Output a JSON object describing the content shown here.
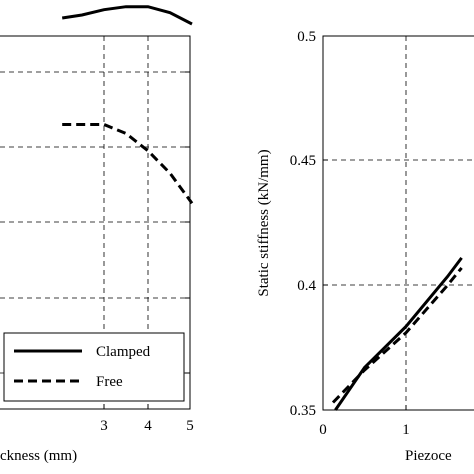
{
  "chart_data": [
    {
      "type": "line",
      "xlabel_visible": "ckness (mm)",
      "ylabel": "",
      "xlim": [
        2.05,
        5
      ],
      "x_ticks": [
        "3",
        "4",
        "5"
      ],
      "grid": true,
      "legend": {
        "position": "bottom-right",
        "entries": [
          "Clamped",
          "Free"
        ]
      },
      "series": [
        {
          "name": "Clamped",
          "style": "solid",
          "points": [
            [
              2.05,
              0.872
            ],
            [
              2.5,
              0.876
            ],
            [
              3.0,
              0.883
            ],
            [
              3.5,
              0.887
            ],
            [
              4.0,
              0.887
            ],
            [
              4.5,
              0.879
            ],
            [
              5.0,
              0.864
            ]
          ]
        },
        {
          "name": "Free",
          "style": "dashed",
          "points": [
            [
              2.05,
              0.73
            ],
            [
              3.0,
              0.73
            ],
            [
              3.5,
              0.718
            ],
            [
              4.0,
              0.695
            ],
            [
              4.5,
              0.665
            ],
            [
              5.0,
              0.625
            ]
          ]
        }
      ]
    },
    {
      "type": "line",
      "xlabel_visible": "Piezoce",
      "ylabel": "Static stiffness (kN/mm)",
      "xlim": [
        0,
        1.67
      ],
      "ylim": [
        0.35,
        0.5
      ],
      "y_ticks": [
        "0.35",
        "0.4",
        "0.45",
        "0.5"
      ],
      "x_ticks": [
        "0",
        "1"
      ],
      "grid": true,
      "series": [
        {
          "name": "Clamped",
          "style": "solid",
          "points": [
            [
              0.15,
              0.35
            ],
            [
              0.5,
              0.367
            ],
            [
              1.0,
              0.3835
            ],
            [
              1.5,
              0.4035
            ],
            [
              1.67,
              0.411
            ]
          ]
        },
        {
          "name": "Free",
          "style": "dashed",
          "points": [
            [
              0.12,
              0.353
            ],
            [
              0.5,
              0.366
            ],
            [
              1.0,
              0.381
            ],
            [
              1.5,
              0.4
            ],
            [
              1.67,
              0.407
            ]
          ]
        }
      ]
    }
  ]
}
